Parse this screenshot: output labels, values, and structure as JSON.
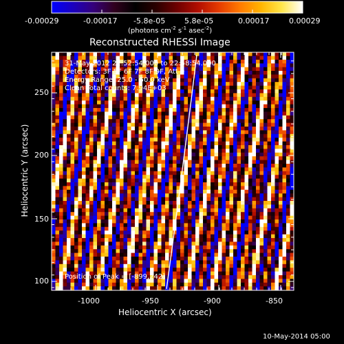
{
  "colorbar": {
    "ticks": [
      "-0.00029",
      "-0.00017",
      "-5.8e-05",
      "5.8e-05",
      "0.00017",
      "0.00029"
    ],
    "units_main": "(photons cm",
    "units_sup1": "-2",
    "units_mid": " s",
    "units_sup2": "-1",
    "units_end": " asec",
    "units_sup3": "-2",
    "units_close": ")",
    "colormap": [
      "#0000ff",
      "#1a00c0",
      "#35007a",
      "#30001e",
      "#000000",
      "#2a0000",
      "#6e0000",
      "#b20e00",
      "#e63b00",
      "#ff7a00",
      "#ffb400",
      "#ffe64a",
      "#ffffff"
    ]
  },
  "plot": {
    "title": "Reconstructed RHESSI Image",
    "xlabel": "Heliocentric X (arcsec)",
    "ylabel": "Heliocentric Y (arcsec)",
    "xticks": [
      "-1000",
      "-950",
      "-900",
      "-850"
    ],
    "yticks": [
      "100",
      "150",
      "200",
      "250"
    ],
    "annotations": [
      "31-May-2012 22:52:54.000 to 22:58:54.000",
      "Detectors: 3F 5F 6F 7F 8F 9F, Att 0",
      "Energy Range: 25.0 - 50.0 keV",
      "Clean    Total counts: 7.94E+03"
    ],
    "peak_text": "Position of Peak = [-899,242]",
    "limb_color": "#ffffff"
  },
  "footer": {
    "timestamp": "10-May-2014 05:00"
  }
}
